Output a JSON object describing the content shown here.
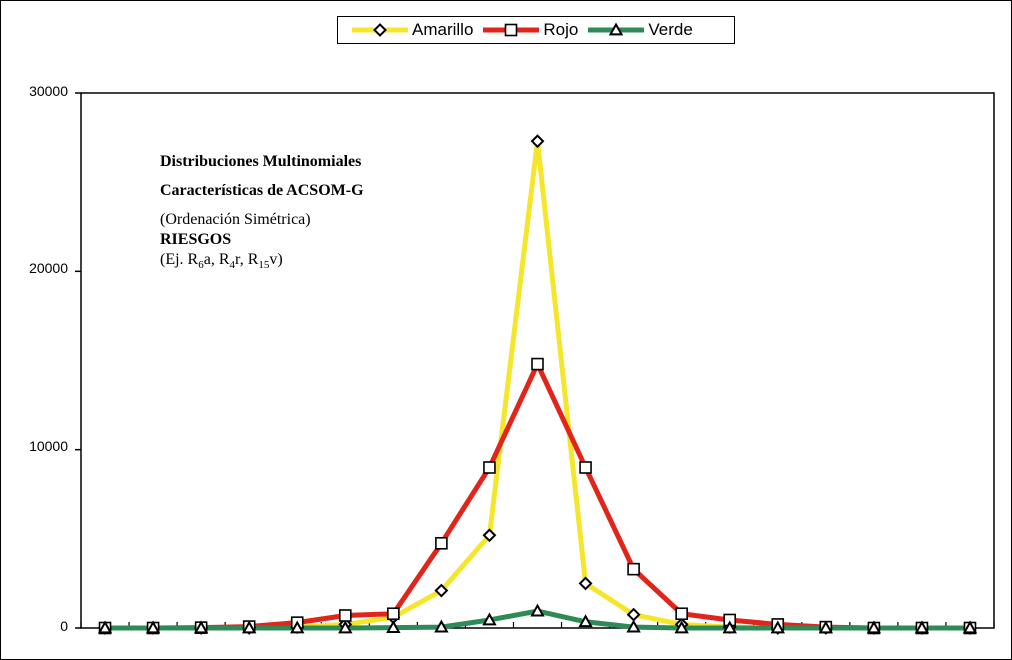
{
  "legend": {
    "items": [
      {
        "label": "Amarillo",
        "color": "#f5e62c",
        "marker": "diamond"
      },
      {
        "label": "Rojo",
        "color": "#e1251b",
        "marker": "square"
      },
      {
        "label": "Verde",
        "color": "#2e8b57",
        "marker": "triangle"
      }
    ]
  },
  "annotation": {
    "line1": "Distribuciones Multinomiales",
    "line2": "Características de ACSOM-G",
    "line3": "(Ordenación Simétrica)",
    "line4": "RIESGOS",
    "line5_prefix": "(Ej. R",
    "sub1": "6",
    "mid1": "a, R",
    "sub2": "4",
    "mid2": "r, R",
    "sub3": "15",
    "line5_suffix": "v)"
  },
  "chart_data": {
    "type": "line",
    "x": [
      1,
      2,
      3,
      4,
      5,
      6,
      7,
      8,
      9,
      10,
      11,
      12,
      13,
      14,
      15,
      16,
      17,
      18,
      19
    ],
    "ylim": [
      0,
      30000
    ],
    "yticks": [
      0,
      10000,
      20000,
      30000
    ],
    "ytick_labels": [
      "0",
      "10000",
      "20000",
      "30000"
    ],
    "grid": false,
    "legend_position": "top-center",
    "series": [
      {
        "name": "Amarillo",
        "color": "#f5e62c",
        "marker": "diamond",
        "values": [
          0,
          0,
          0,
          0,
          50,
          200,
          600,
          2100,
          5200,
          27300,
          2500,
          750,
          200,
          50,
          0,
          0,
          0,
          0,
          0
        ]
      },
      {
        "name": "Rojo",
        "color": "#e1251b",
        "marker": "square",
        "values": [
          0,
          0,
          20,
          80,
          300,
          700,
          800,
          4750,
          9000,
          14800,
          9000,
          3300,
          800,
          450,
          200,
          50,
          0,
          0,
          0
        ]
      },
      {
        "name": "Verde",
        "color": "#2e8b57",
        "marker": "triangle",
        "values": [
          0,
          0,
          0,
          0,
          0,
          0,
          20,
          50,
          450,
          950,
          350,
          50,
          0,
          0,
          0,
          0,
          0,
          0,
          0
        ]
      }
    ]
  }
}
